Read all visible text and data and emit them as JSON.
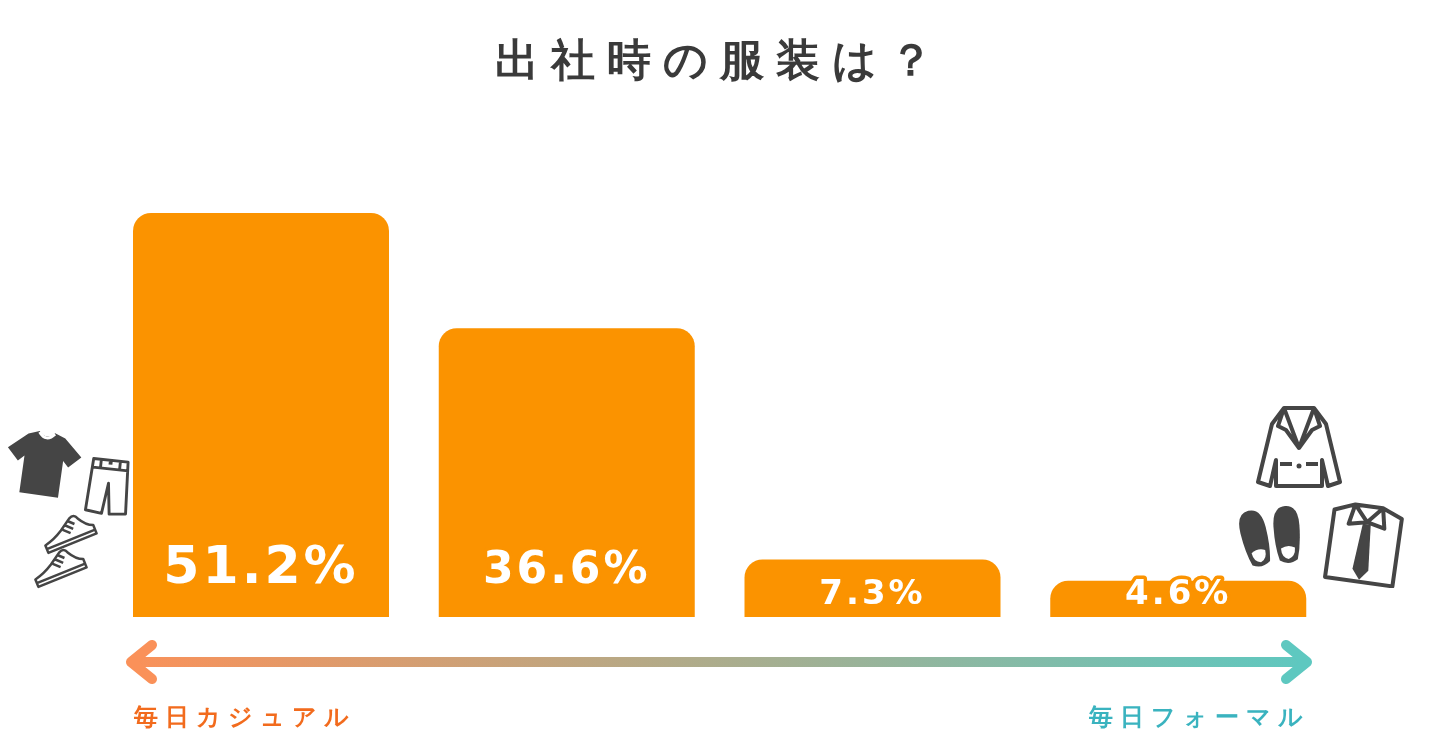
{
  "chart_data": {
    "type": "bar",
    "title": "出社時の服装は？",
    "categories": [
      null,
      null,
      null,
      null
    ],
    "values": [
      51.2,
      36.6,
      7.3,
      4.6
    ],
    "color": "#fb9300",
    "value_labels": [
      "51.2%",
      "36.6%",
      "7.3%",
      "4.6%"
    ],
    "tick_labels": false,
    "annotations": [
      "毎日カジュアル",
      "毎日フォーマル"
    ]
  }
}
